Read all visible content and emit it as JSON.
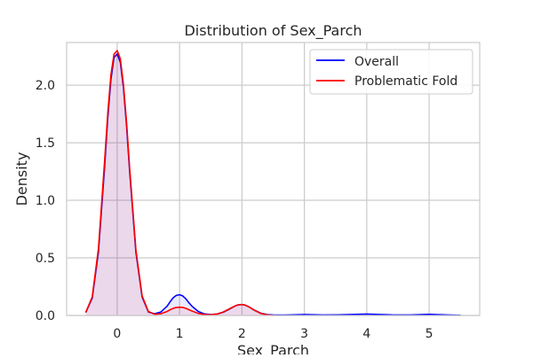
{
  "chart_data": {
    "type": "line",
    "title": "Distribution of Sex_Parch",
    "xlabel": "Sex_Parch",
    "ylabel": "Density",
    "xlim": [
      -0.81,
      5.81
    ],
    "ylim": [
      0,
      2.37
    ],
    "xticks": [
      0,
      1,
      2,
      3,
      4,
      5
    ],
    "yticks": [
      0.0,
      0.5,
      1.0,
      1.5,
      2.0
    ],
    "ytick_labels": [
      "0.0",
      "0.5",
      "1.0",
      "1.5",
      "2.0"
    ],
    "grid": true,
    "legend_position": "top-right",
    "series": [
      {
        "name": "Overall",
        "color": "#0000ff",
        "x": [
          -0.5,
          -0.4,
          -0.3,
          -0.2,
          -0.15,
          -0.1,
          -0.05,
          0.0,
          0.05,
          0.1,
          0.15,
          0.2,
          0.3,
          0.4,
          0.5,
          0.6,
          0.7,
          0.8,
          0.85,
          0.9,
          0.95,
          1.0,
          1.05,
          1.1,
          1.15,
          1.2,
          1.3,
          1.4,
          1.5,
          1.6,
          1.7,
          1.8,
          1.85,
          1.9,
          1.95,
          2.0,
          2.05,
          2.1,
          2.15,
          2.2,
          2.3,
          2.4,
          2.5,
          2.7,
          3.0,
          3.3,
          3.6,
          4.0,
          4.4,
          4.7,
          5.0,
          5.3,
          5.5
        ],
        "y": [
          0.03,
          0.15,
          0.55,
          1.3,
          1.72,
          2.05,
          2.24,
          2.27,
          2.2,
          1.98,
          1.65,
          1.25,
          0.55,
          0.16,
          0.03,
          0.015,
          0.03,
          0.08,
          0.12,
          0.155,
          0.175,
          0.18,
          0.17,
          0.145,
          0.11,
          0.08,
          0.035,
          0.013,
          0.008,
          0.012,
          0.028,
          0.055,
          0.07,
          0.085,
          0.093,
          0.095,
          0.09,
          0.078,
          0.062,
          0.045,
          0.02,
          0.008,
          0.004,
          0.003,
          0.008,
          0.004,
          0.006,
          0.012,
          0.005,
          0.004,
          0.01,
          0.004,
          0.002
        ]
      },
      {
        "name": "Problematic Fold",
        "color": "#ff0000",
        "x": [
          -0.5,
          -0.4,
          -0.3,
          -0.2,
          -0.15,
          -0.1,
          -0.05,
          0.0,
          0.05,
          0.1,
          0.15,
          0.2,
          0.3,
          0.4,
          0.5,
          0.6,
          0.7,
          0.8,
          0.85,
          0.9,
          0.95,
          1.0,
          1.05,
          1.1,
          1.15,
          1.2,
          1.3,
          1.4,
          1.5,
          1.6,
          1.7,
          1.8,
          1.85,
          1.9,
          1.95,
          2.0,
          2.05,
          2.1,
          2.15,
          2.2,
          2.3,
          2.4,
          2.5
        ],
        "y": [
          0.03,
          0.16,
          0.58,
          1.35,
          1.76,
          2.09,
          2.27,
          2.3,
          2.23,
          2.01,
          1.68,
          1.28,
          0.57,
          0.17,
          0.035,
          0.01,
          0.015,
          0.035,
          0.05,
          0.062,
          0.07,
          0.072,
          0.07,
          0.062,
          0.05,
          0.038,
          0.018,
          0.008,
          0.006,
          0.012,
          0.03,
          0.058,
          0.072,
          0.085,
          0.093,
          0.095,
          0.09,
          0.078,
          0.062,
          0.045,
          0.018,
          0.005,
          0.001
        ]
      }
    ]
  }
}
